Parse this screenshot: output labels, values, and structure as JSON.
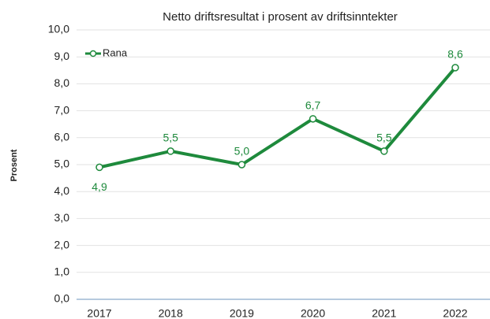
{
  "chart_data": {
    "type": "line",
    "title": "Netto driftsresultat i prosent av driftsinntekter",
    "y_label": "Prosent",
    "categories": [
      "2017",
      "2018",
      "2019",
      "2020",
      "2021",
      "2022"
    ],
    "series": [
      {
        "name": "Rana",
        "color": "#1e8a3c",
        "values": [
          4.9,
          5.5,
          5.0,
          6.7,
          5.5,
          8.6
        ],
        "value_labels": [
          "4,9",
          "5,5",
          "5,0",
          "6,7",
          "5,5",
          "8,6"
        ]
      }
    ],
    "ylim": [
      0,
      10
    ],
    "yticks": [
      {
        "value": 0,
        "label": "0,0"
      },
      {
        "value": 1,
        "label": "1,0"
      },
      {
        "value": 2,
        "label": "2,0"
      },
      {
        "value": 3,
        "label": "3,0"
      },
      {
        "value": 4,
        "label": "4,0"
      },
      {
        "value": 5,
        "label": "5,0"
      },
      {
        "value": 6,
        "label": "6,0"
      },
      {
        "value": 7,
        "label": "7,0"
      },
      {
        "value": 8,
        "label": "8,0"
      },
      {
        "value": 9,
        "label": "9,0"
      },
      {
        "value": 10,
        "label": "10,0"
      }
    ],
    "grid": true,
    "legend": "top-left"
  }
}
